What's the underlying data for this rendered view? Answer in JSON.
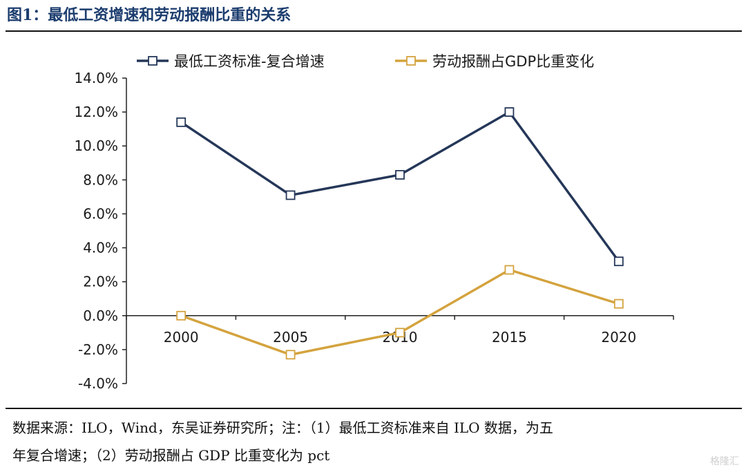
{
  "figure": {
    "title": "图1：最低工资增速和劳动报酬比重的关系",
    "note_line1": "数据来源：ILO，Wind，东吴证券研究所；注：（1）最低工资标准来自 ILO 数据，为五",
    "note_line2": "年复合增速；（2）劳动报酬占 GDP 比重变化为 pct",
    "watermark": "格隆汇"
  },
  "chart_data": {
    "type": "line",
    "categories": [
      "2000",
      "2005",
      "2010",
      "2015",
      "2020"
    ],
    "series": [
      {
        "name": "最低工资标准-复合增速",
        "values": [
          11.4,
          7.1,
          8.3,
          12.0,
          3.2
        ],
        "color": "#253759",
        "marker": "hollow-square"
      },
      {
        "name": "劳动报酬占GDP比重变化",
        "values": [
          0.0,
          -2.3,
          -1.0,
          2.7,
          0.7
        ],
        "color": "#d4a33e",
        "marker": "hollow-square"
      }
    ],
    "ylim": [
      -4.0,
      14.0
    ],
    "yticks": [
      "14.0%",
      "12.0%",
      "10.0%",
      "8.0%",
      "6.0%",
      "4.0%",
      "2.0%",
      "0.0%",
      "-2.0%",
      "-4.0%"
    ],
    "legend": "top",
    "grid": false
  }
}
